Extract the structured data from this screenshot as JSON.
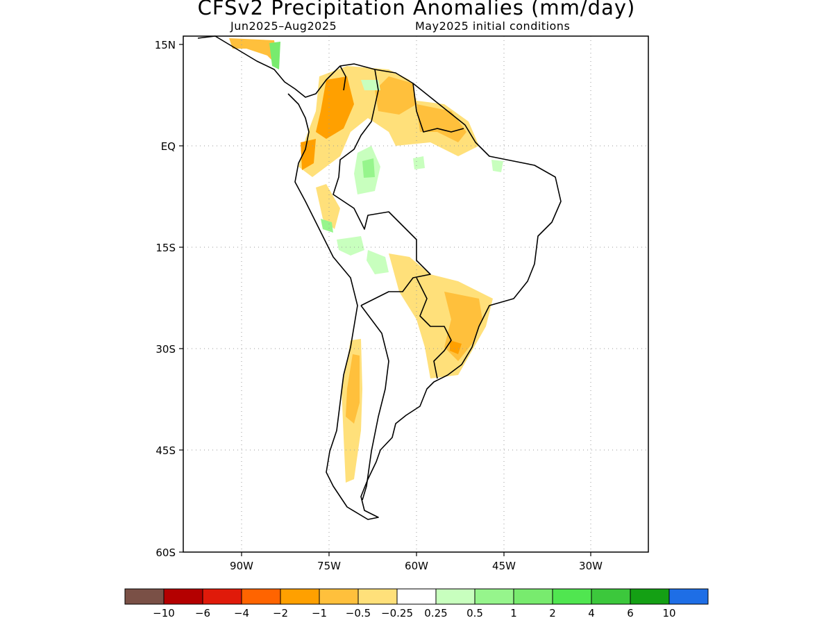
{
  "title": "CFSv2 Precipitation Anomalies (mm/day)",
  "subtitle_left": "Jun2025–Aug2025",
  "subtitle_right": "May2025 initial conditions",
  "map": {
    "lat_labels": [
      "15N",
      "EQ",
      "15S",
      "30S",
      "45S",
      "60S"
    ],
    "lon_labels": [
      "90W",
      "75W",
      "60W",
      "45W",
      "30W"
    ],
    "region": "South America",
    "colors": {
      "land_outline": "#000000",
      "grid": "#9a9a9a"
    }
  },
  "colorbar": {
    "colors": [
      "#7a5046",
      "#b40000",
      "#e01a0a",
      "#ff6400",
      "#ffa000",
      "#ffc03c",
      "#ffe07a",
      "#ffffff",
      "#c8ffbe",
      "#96f58c",
      "#78eb6e",
      "#50e650",
      "#3cc83c",
      "#14a014",
      "#1e6ee6"
    ],
    "labels": [
      "−10",
      "−6",
      "−4",
      "−2",
      "−1",
      "−0.5",
      "−0.25",
      "0.25",
      "0.5",
      "1",
      "2",
      "4",
      "6",
      "10"
    ]
  }
}
